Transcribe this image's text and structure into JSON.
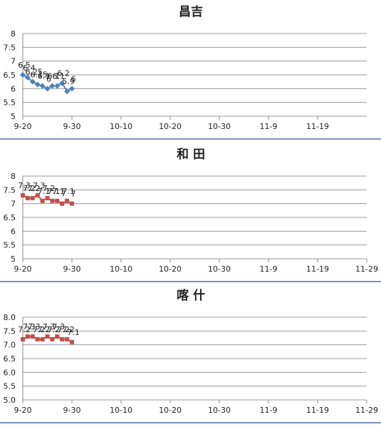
{
  "chart_data": [
    {
      "type": "line",
      "title": "昌吉",
      "x": [
        0,
        1,
        2,
        3,
        4,
        5,
        6,
        7,
        8,
        9,
        10
      ],
      "series": [
        {
          "name": "昌吉",
          "color": "#4f81bd",
          "marker": "diamond",
          "values": [
            6.5,
            6.4,
            6.25,
            6.15,
            6.1,
            6.0,
            6.1,
            6.1,
            6.2,
            5.9,
            6.0
          ]
        }
      ],
      "xlim": [
        0,
        70
      ],
      "xticks": [
        {
          "value": 0,
          "label": "9-20"
        },
        {
          "value": 10,
          "label": "9-30"
        },
        {
          "value": 20,
          "label": "10-10"
        },
        {
          "value": 30,
          "label": "10-20"
        },
        {
          "value": 40,
          "label": "10-30"
        },
        {
          "value": 50,
          "label": "11-9"
        },
        {
          "value": 60,
          "label": "11-19"
        }
      ],
      "ylim": [
        5,
        8
      ],
      "yticks": [
        5,
        5.5,
        6,
        6.5,
        7,
        7.5,
        8
      ],
      "grid": true
    },
    {
      "type": "line",
      "title": "和  田",
      "x": [
        0,
        1,
        2,
        3,
        4,
        5,
        6,
        7,
        8,
        9,
        10
      ],
      "series": [
        {
          "name": "和田",
          "color": "#c0504d",
          "marker": "square",
          "values": [
            7.3,
            7.2,
            7.2,
            7.3,
            7.1,
            7.2,
            7.1,
            7.1,
            7.0,
            7.1,
            7.0
          ]
        }
      ],
      "xlim": [
        0,
        70
      ],
      "xticks": [
        {
          "value": 0,
          "label": "9-20"
        },
        {
          "value": 10,
          "label": "9-30"
        },
        {
          "value": 20,
          "label": "10-10"
        },
        {
          "value": 30,
          "label": "10-20"
        },
        {
          "value": 40,
          "label": "10-30"
        },
        {
          "value": 50,
          "label": "11-9"
        },
        {
          "value": 60,
          "label": "11-19"
        },
        {
          "value": 70,
          "label": "11-29"
        }
      ],
      "ylim": [
        5,
        8
      ],
      "yticks": [
        5,
        5.5,
        6,
        6.5,
        7,
        7.5,
        8
      ],
      "grid": true
    },
    {
      "type": "line",
      "title": "喀  什",
      "x": [
        0,
        1,
        2,
        3,
        4,
        5,
        6,
        7,
        8,
        9,
        10
      ],
      "series": [
        {
          "name": "喀什",
          "color": "#c0504d",
          "marker": "square",
          "values": [
            7.2,
            7.3,
            7.3,
            7.2,
            7.2,
            7.3,
            7.2,
            7.3,
            7.2,
            7.2,
            7.1
          ]
        }
      ],
      "xlim": [
        0,
        70
      ],
      "xticks": [
        {
          "value": 0,
          "label": "9-20"
        },
        {
          "value": 10,
          "label": "9-30"
        },
        {
          "value": 20,
          "label": "10-10"
        },
        {
          "value": 30,
          "label": "10-20"
        },
        {
          "value": 40,
          "label": "10-30"
        },
        {
          "value": 50,
          "label": "11-9"
        },
        {
          "value": 60,
          "label": "11-19"
        },
        {
          "value": 70,
          "label": "11-29"
        }
      ],
      "ylim": [
        5,
        8
      ],
      "yticks": [
        {
          "value": 5,
          "label": "5.0"
        },
        {
          "value": 5.5,
          "label": "5.5"
        },
        {
          "value": 6,
          "label": "6.0"
        },
        {
          "value": 6.5,
          "label": "6.5"
        },
        {
          "value": 7,
          "label": "7.0"
        },
        {
          "value": 7.5,
          "label": "7.5"
        },
        {
          "value": 8,
          "label": "8.0"
        }
      ],
      "grid": true
    }
  ]
}
